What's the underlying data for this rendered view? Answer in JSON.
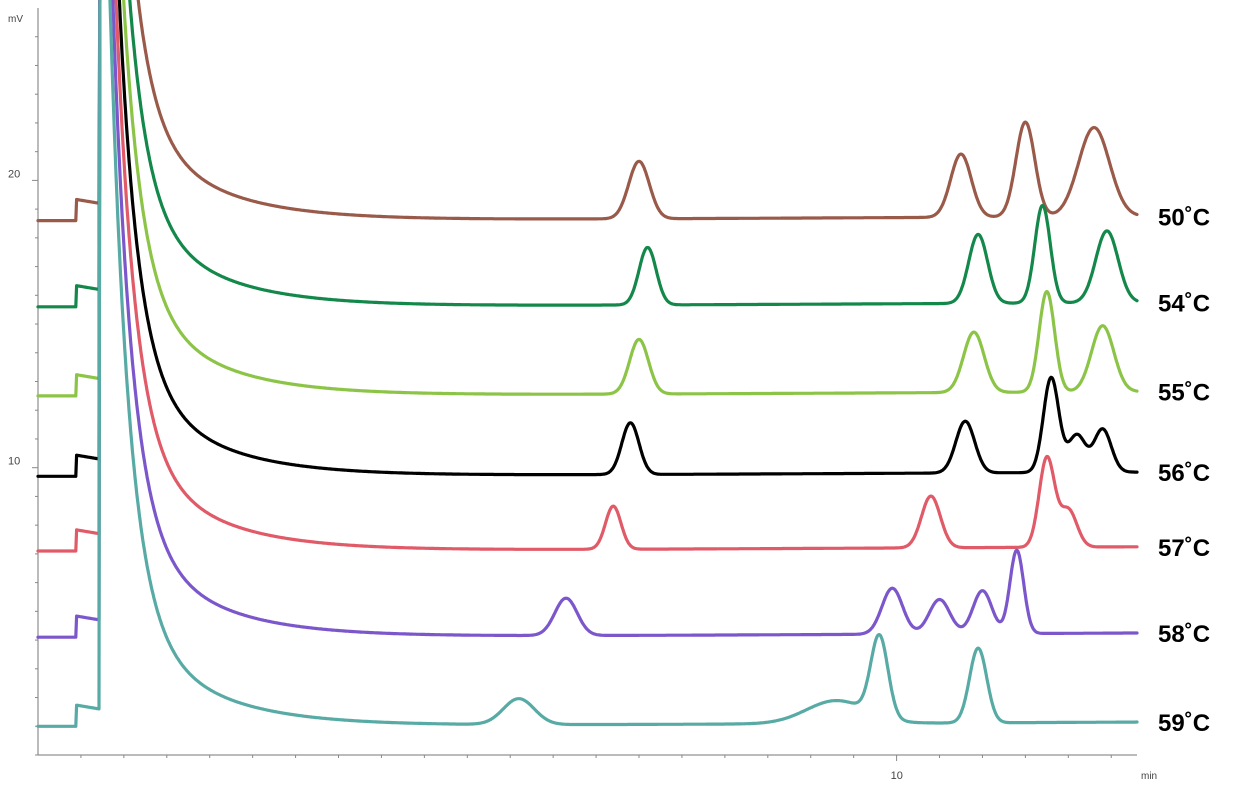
{
  "chart_data": {
    "type": "line",
    "title": "",
    "xlabel": "",
    "ylabel": "",
    "x_unit": "min",
    "y_unit": "mV",
    "xlim": [
      0,
      12.8
    ],
    "ylim": [
      0,
      26
    ],
    "x_ticks": [
      {
        "value": 10,
        "label": "10"
      }
    ],
    "y_ticks": [
      {
        "value": 10,
        "label": "10"
      },
      {
        "value": 20,
        "label": "20"
      }
    ],
    "grid": false,
    "legend": "right, at the end of each trace",
    "series": [
      {
        "name": "50˚C",
        "color": "#9a5a4a",
        "baseline": 18.6,
        "peaks": [
          [
            7.0,
            2.0,
            0.12
          ],
          [
            10.75,
            2.2,
            0.12
          ],
          [
            11.5,
            3.3,
            0.11
          ],
          [
            12.3,
            3.1,
            0.18
          ]
        ]
      },
      {
        "name": "54˚C",
        "color": "#13884a",
        "baseline": 15.6,
        "peaks": [
          [
            7.1,
            2.0,
            0.1
          ],
          [
            10.95,
            2.4,
            0.11
          ],
          [
            11.7,
            3.4,
            0.09
          ],
          [
            12.45,
            2.5,
            0.13
          ]
        ]
      },
      {
        "name": "55˚C",
        "color": "#8cc447",
        "baseline": 12.5,
        "peaks": [
          [
            7.0,
            1.9,
            0.11
          ],
          [
            10.9,
            2.1,
            0.12
          ],
          [
            11.75,
            3.5,
            0.09
          ],
          [
            12.4,
            2.3,
            0.13
          ]
        ]
      },
      {
        "name": "56˚C",
        "color": "#000000",
        "baseline": 9.7,
        "peaks": [
          [
            6.9,
            1.8,
            0.1
          ],
          [
            10.8,
            1.8,
            0.11
          ],
          [
            11.8,
            3.3,
            0.09
          ],
          [
            12.1,
            1.3,
            0.1
          ],
          [
            12.4,
            1.5,
            0.1
          ]
        ]
      },
      {
        "name": "57˚C",
        "color": "#e05a68",
        "baseline": 7.1,
        "peaks": [
          [
            6.7,
            1.5,
            0.09
          ],
          [
            10.4,
            1.8,
            0.11
          ],
          [
            11.75,
            3.1,
            0.09
          ],
          [
            12.0,
            1.3,
            0.1
          ]
        ]
      },
      {
        "name": "58˚C",
        "color": "#7b57cb",
        "baseline": 4.1,
        "peaks": [
          [
            6.15,
            1.3,
            0.13
          ],
          [
            9.95,
            1.6,
            0.12
          ],
          [
            10.5,
            1.2,
            0.12
          ],
          [
            11.0,
            1.5,
            0.11
          ],
          [
            11.4,
            2.9,
            0.08
          ]
        ]
      },
      {
        "name": "59˚C",
        "color": "#58aaa5",
        "baseline": 1.0,
        "peaks": [
          [
            5.6,
            0.9,
            0.18
          ],
          [
            9.3,
            0.8,
            0.35
          ],
          [
            9.8,
            2.8,
            0.1
          ],
          [
            10.95,
            2.6,
            0.1
          ]
        ]
      }
    ]
  }
}
